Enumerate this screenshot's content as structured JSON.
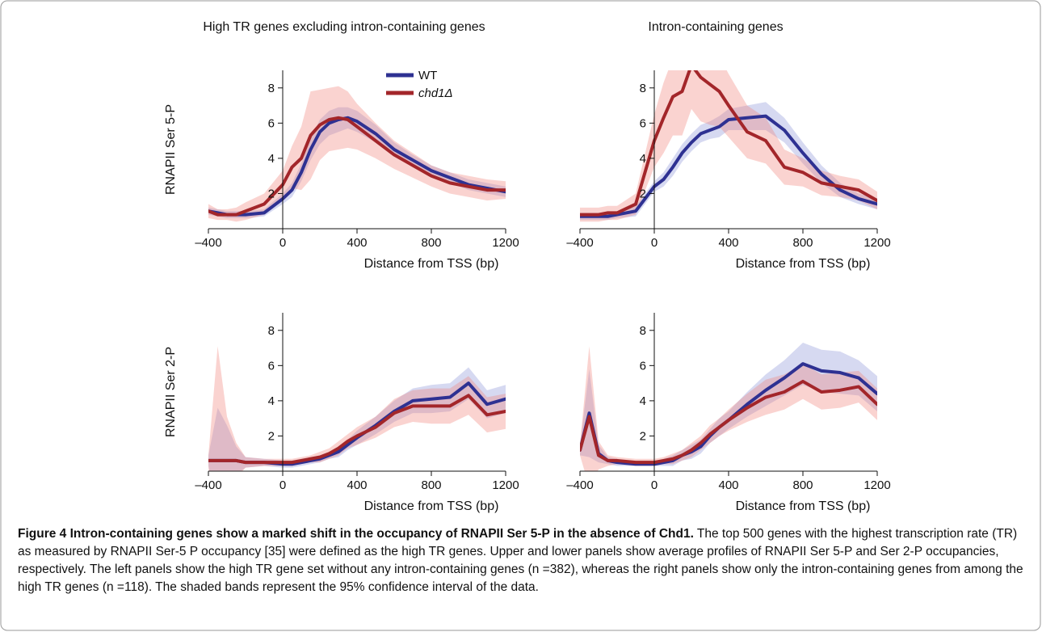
{
  "chart_data": [
    {
      "type": "line",
      "title": "High TR genes excluding intron-containing genes",
      "ylabel": "RNAPII Ser 5-P",
      "xlabel": "Distance from TSS (bp)",
      "legend": true,
      "x": [
        -400,
        -350,
        -300,
        -250,
        -200,
        -100,
        0,
        50,
        100,
        150,
        200,
        250,
        300,
        350,
        400,
        500,
        600,
        700,
        800,
        900,
        1000,
        1100,
        1200
      ],
      "xlim": [
        -400,
        1200
      ],
      "ylim": [
        0,
        9
      ],
      "xticks": [
        {
          "value": -400,
          "label": "–400"
        },
        0,
        400,
        800,
        1200
      ],
      "yticks": [
        2,
        4,
        6,
        8
      ],
      "series": [
        {
          "name": "WT",
          "color": "#2e3192",
          "band_color": "rgba(120,130,210,0.3)",
          "values": [
            1.0,
            0.9,
            0.8,
            0.8,
            0.8,
            0.9,
            1.7,
            2.2,
            3.2,
            4.5,
            5.5,
            6.0,
            6.2,
            6.3,
            6.1,
            5.4,
            4.5,
            3.9,
            3.3,
            2.9,
            2.5,
            2.3,
            2.1
          ],
          "ci": [
            0.2,
            0.2,
            0.2,
            0.2,
            0.2,
            0.2,
            0.3,
            0.4,
            0.5,
            0.6,
            0.7,
            0.7,
            0.7,
            0.6,
            0.6,
            0.5,
            0.4,
            0.3,
            0.3,
            0.3,
            0.3,
            0.3,
            0.3
          ]
        },
        {
          "name": "chd1Δ",
          "color": "#a3262a",
          "band_color": "rgba(240,130,120,0.35)",
          "values": [
            1.0,
            0.8,
            0.8,
            0.8,
            1.0,
            1.4,
            2.5,
            3.5,
            4.0,
            5.3,
            5.9,
            6.2,
            6.3,
            6.2,
            5.8,
            5.0,
            4.2,
            3.6,
            3.0,
            2.6,
            2.4,
            2.2,
            2.2
          ],
          "ci": [
            0.4,
            0.3,
            0.3,
            0.4,
            0.5,
            0.6,
            0.8,
            1.2,
            1.8,
            2.5,
            2.0,
            1.8,
            1.8,
            1.6,
            1.3,
            1.0,
            0.8,
            0.7,
            0.6,
            0.6,
            0.6,
            0.6,
            0.5
          ]
        }
      ]
    },
    {
      "type": "line",
      "title": "Intron-containing genes",
      "xlabel": "Distance from TSS (bp)",
      "x": [
        -400,
        -350,
        -300,
        -250,
        -200,
        -100,
        0,
        50,
        100,
        150,
        200,
        250,
        300,
        350,
        400,
        500,
        600,
        700,
        800,
        900,
        1000,
        1100,
        1200
      ],
      "xlim": [
        -400,
        1200
      ],
      "ylim": [
        0,
        9
      ],
      "xticks": [
        {
          "value": -400,
          "label": "–400"
        },
        0,
        400,
        800,
        1200
      ],
      "yticks": [
        2,
        4,
        6,
        8
      ],
      "series": [
        {
          "color": "#2e3192",
          "band_color": "rgba(120,130,210,0.3)",
          "values": [
            0.7,
            0.7,
            0.7,
            0.7,
            0.8,
            1.0,
            2.4,
            2.8,
            3.5,
            4.3,
            4.9,
            5.4,
            5.6,
            5.8,
            6.2,
            6.3,
            6.4,
            5.6,
            4.3,
            3.1,
            2.2,
            1.7,
            1.4
          ],
          "ci": [
            0.2,
            0.2,
            0.2,
            0.2,
            0.2,
            0.3,
            0.3,
            0.4,
            0.5,
            0.5,
            0.5,
            0.5,
            0.5,
            0.6,
            0.6,
            0.7,
            0.8,
            0.7,
            0.6,
            0.5,
            0.4,
            0.3,
            0.3
          ]
        },
        {
          "color": "#a3262a",
          "band_color": "rgba(240,130,120,0.35)",
          "values": [
            0.8,
            0.8,
            0.8,
            0.9,
            0.9,
            1.4,
            5.0,
            6.3,
            7.5,
            7.8,
            9.3,
            8.6,
            8.2,
            7.8,
            7.0,
            5.5,
            5.0,
            3.5,
            3.2,
            2.6,
            2.4,
            2.2,
            1.6
          ],
          "ci": [
            0.4,
            0.4,
            0.4,
            0.4,
            0.4,
            0.6,
            1.5,
            2.0,
            2.2,
            2.5,
            2.5,
            2.5,
            2.3,
            2.0,
            1.8,
            1.5,
            1.3,
            1.0,
            0.8,
            0.7,
            0.6,
            0.6,
            0.5
          ]
        }
      ]
    },
    {
      "type": "line",
      "ylabel": "RNAPII Ser 2-P",
      "xlabel": "Distance from TSS (bp)",
      "x": [
        -400,
        -350,
        -300,
        -250,
        -200,
        -100,
        0,
        50,
        100,
        150,
        200,
        250,
        300,
        350,
        400,
        500,
        600,
        700,
        800,
        900,
        1000,
        1100,
        1200
      ],
      "xlim": [
        -400,
        1200
      ],
      "ylim": [
        0,
        9
      ],
      "xticks": [
        {
          "value": -400,
          "label": "–400"
        },
        0,
        400,
        800,
        1200
      ],
      "yticks": [
        2,
        4,
        6,
        8
      ],
      "series": [
        {
          "color": "#2e3192",
          "band_color": "rgba(120,130,210,0.3)",
          "values": [
            0.6,
            0.6,
            0.6,
            0.6,
            0.5,
            0.5,
            0.4,
            0.4,
            0.5,
            0.6,
            0.7,
            0.9,
            1.1,
            1.5,
            1.9,
            2.6,
            3.4,
            4.0,
            4.1,
            4.2,
            5.0,
            3.8,
            4.1
          ],
          "ci": [
            0.3,
            3.0,
            2.0,
            0.8,
            0.3,
            0.2,
            0.2,
            0.2,
            0.2,
            0.2,
            0.2,
            0.2,
            0.3,
            0.3,
            0.4,
            0.5,
            0.6,
            0.7,
            0.8,
            0.8,
            0.9,
            0.8,
            0.8
          ]
        },
        {
          "color": "#a3262a",
          "band_color": "rgba(240,130,120,0.35)",
          "values": [
            0.6,
            0.6,
            0.6,
            0.6,
            0.5,
            0.5,
            0.5,
            0.5,
            0.6,
            0.7,
            0.8,
            1.0,
            1.3,
            1.7,
            2.0,
            2.5,
            3.3,
            3.7,
            3.7,
            3.7,
            4.3,
            3.2,
            3.4
          ],
          "ci": [
            0.3,
            6.5,
            2.5,
            1.0,
            0.3,
            0.2,
            0.2,
            0.2,
            0.2,
            0.2,
            0.3,
            0.3,
            0.4,
            0.4,
            0.5,
            0.6,
            0.8,
            0.9,
            1.0,
            1.0,
            1.1,
            1.0,
            1.0
          ]
        }
      ]
    },
    {
      "type": "line",
      "xlabel": "Distance from TSS (bp)",
      "x": [
        -400,
        -350,
        -300,
        -250,
        -200,
        -100,
        0,
        50,
        100,
        150,
        200,
        250,
        300,
        350,
        400,
        500,
        600,
        700,
        800,
        900,
        1000,
        1100,
        1200
      ],
      "xlim": [
        -400,
        1200
      ],
      "ylim": [
        0,
        9
      ],
      "xticks": [
        {
          "value": -400,
          "label": "–400"
        },
        0,
        400,
        800,
        1200
      ],
      "yticks": [
        2,
        4,
        6,
        8
      ],
      "series": [
        {
          "color": "#2e3192",
          "band_color": "rgba(120,130,210,0.3)",
          "values": [
            1.2,
            3.3,
            1.0,
            0.6,
            0.5,
            0.4,
            0.4,
            0.5,
            0.6,
            0.9,
            1.1,
            1.4,
            2.0,
            2.5,
            2.9,
            3.8,
            4.6,
            5.3,
            6.1,
            5.7,
            5.6,
            5.3,
            4.4
          ],
          "ci": [
            0.3,
            2.5,
            0.5,
            0.2,
            0.2,
            0.1,
            0.1,
            0.2,
            0.3,
            0.3,
            0.4,
            0.4,
            0.4,
            0.5,
            0.5,
            0.7,
            0.9,
            1.0,
            1.2,
            1.2,
            1.2,
            1.0,
            1.0
          ]
        },
        {
          "color": "#a3262a",
          "band_color": "rgba(240,130,120,0.35)",
          "values": [
            1.2,
            3.1,
            0.9,
            0.6,
            0.6,
            0.5,
            0.5,
            0.6,
            0.7,
            0.9,
            1.2,
            1.6,
            2.1,
            2.5,
            2.9,
            3.6,
            4.2,
            4.5,
            5.1,
            4.5,
            4.6,
            4.8,
            3.8
          ],
          "ci": [
            0.3,
            4.0,
            0.8,
            0.3,
            0.2,
            0.2,
            0.2,
            0.2,
            0.3,
            0.3,
            0.4,
            0.4,
            0.5,
            0.5,
            0.6,
            0.8,
            1.0,
            1.0,
            1.0,
            1.0,
            1.0,
            0.9,
            0.9
          ]
        }
      ]
    }
  ],
  "caption": {
    "label": "Figure 4",
    "title": "Intron-containing genes show a marked shift in the occupancy of RNAPII Ser 5-P in the absence of Chd1.",
    "text": "The top 500 genes with the highest transcription rate (TR) as measured by RNAPII Ser-5 P occupancy [35] were defined as the high TR genes. Upper and lower panels show average profiles of RNAPII Ser 5-P and Ser 2-P occupancies, respectively. The left panels show the high TR gene set without any intron-containing genes (n =382), whereas the right panels show only the intron-containing genes from among the high TR genes (n =118). The shaded bands represent the 95% confidence interval of the data."
  }
}
